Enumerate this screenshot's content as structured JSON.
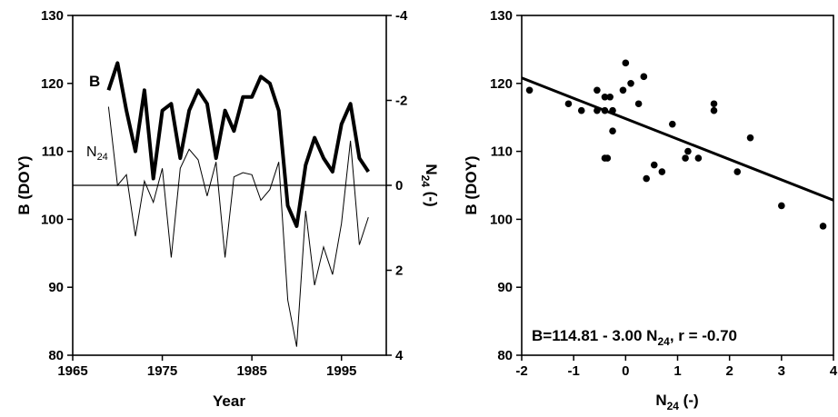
{
  "chart_data": [
    {
      "type": "line",
      "xlabel": "Year",
      "ylabel": "B (DOY)",
      "y2label": {
        "main": "N",
        "sub": "24",
        "suffix": " (-)"
      },
      "xlim": [
        1965,
        2000
      ],
      "ylim": [
        80,
        130
      ],
      "y2lim": [
        -4,
        4
      ],
      "y2_inverted": true,
      "x_ticks": [
        1965,
        1975,
        1985,
        1995
      ],
      "y_ticks": [
        80,
        90,
        100,
        110,
        120,
        130
      ],
      "y2_ticks": [
        -4,
        -2,
        0,
        2,
        4
      ],
      "y2_tick_labels": [
        "-4",
        "-2",
        "0",
        "2",
        "4"
      ],
      "reference_line_y2": 0,
      "x": [
        1969,
        1970,
        1971,
        1972,
        1973,
        1974,
        1975,
        1976,
        1977,
        1978,
        1979,
        1980,
        1981,
        1982,
        1983,
        1984,
        1985,
        1986,
        1987,
        1988,
        1989,
        1990,
        1991,
        1992,
        1993,
        1994,
        1995,
        1996,
        1997,
        1998
      ],
      "series": [
        {
          "name": "B",
          "axis": "left",
          "values": [
            119,
            123,
            116,
            110,
            119,
            106,
            116,
            117,
            109,
            116,
            119,
            117,
            109,
            116,
            113,
            118,
            118,
            121,
            120,
            116,
            102,
            99,
            108,
            112,
            109,
            107,
            114,
            117,
            109,
            107
          ]
        },
        {
          "name": {
            "main": "N",
            "sub": "24"
          },
          "axis": "right",
          "values": [
            -1.85,
            0.0,
            -0.25,
            1.2,
            -0.1,
            0.4,
            -0.4,
            1.7,
            -0.4,
            -0.85,
            -0.6,
            0.25,
            -0.55,
            1.7,
            -0.2,
            -0.3,
            -0.25,
            0.35,
            0.1,
            -0.55,
            2.7,
            3.8,
            0.6,
            2.35,
            1.45,
            2.1,
            0.9,
            -1.05,
            1.4,
            0.75
          ]
        }
      ]
    },
    {
      "type": "scatter",
      "xlabel": {
        "main": "N",
        "sub": "24",
        "suffix": " (-)"
      },
      "ylabel": "B (DOY)",
      "xlim": [
        -2,
        4
      ],
      "ylim": [
        80,
        130
      ],
      "x_ticks": [
        -2,
        -1,
        0,
        1,
        2,
        3,
        4
      ],
      "y_ticks": [
        80,
        90,
        100,
        110,
        120,
        130
      ],
      "points": [
        [
          -1.85,
          119
        ],
        [
          -1.1,
          117
        ],
        [
          -0.85,
          116
        ],
        [
          -0.55,
          116
        ],
        [
          -0.55,
          119
        ],
        [
          -0.4,
          118
        ],
        [
          -0.4,
          116
        ],
        [
          -0.35,
          109
        ],
        [
          -0.4,
          109
        ],
        [
          -0.3,
          118
        ],
        [
          -0.25,
          116
        ],
        [
          -0.25,
          113
        ],
        [
          -0.05,
          119
        ],
        [
          0.0,
          123
        ],
        [
          0.1,
          120
        ],
        [
          0.25,
          117
        ],
        [
          0.35,
          121
        ],
        [
          0.4,
          106
        ],
        [
          0.55,
          108
        ],
        [
          0.7,
          107
        ],
        [
          0.9,
          114
        ],
        [
          1.15,
          109
        ],
        [
          1.2,
          110
        ],
        [
          1.4,
          109
        ],
        [
          1.7,
          117
        ],
        [
          1.7,
          116
        ],
        [
          2.15,
          107
        ],
        [
          2.4,
          112
        ],
        [
          3.0,
          102
        ],
        [
          3.8,
          99
        ]
      ],
      "regression": {
        "intercept": 114.81,
        "slope": -3.0
      },
      "annotation": {
        "left": "B=114.81 - 3.00 N",
        "sub": "24",
        "right": ",  r = -0.70"
      }
    }
  ]
}
